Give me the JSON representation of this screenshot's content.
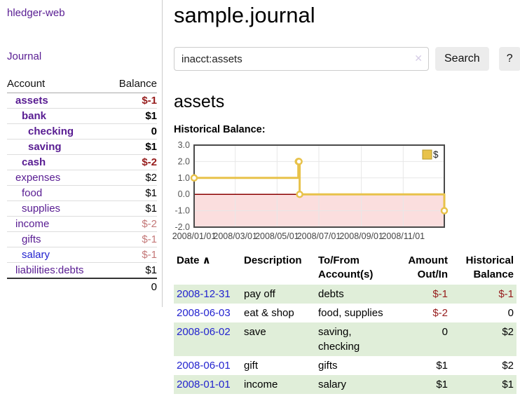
{
  "colors": {
    "link_purple": "#581c92",
    "link_blue": "#2323cf",
    "negative": "#961c1c",
    "negative_muted": "#c47878",
    "row_stripe_green": "#e0eed9",
    "button_bg": "#ececec",
    "clear_icon": "#d6cde6",
    "chart_line": "#e8c24a",
    "chart_marker_fill": "#ffffff",
    "chart_negative_bg": "#fbdede",
    "chart_zero_line": "#8b0000",
    "chart_grid": "#e7e7e7",
    "chart_border": "#4a4a4a",
    "chart_tick_text": "#555555"
  },
  "sidebar": {
    "brand": "hledger-web",
    "journal_link": "Journal",
    "col_account": "Account",
    "col_balance": "Balance",
    "accounts": [
      {
        "name": "assets",
        "indent": 0,
        "bold": true,
        "balance": "$-1",
        "balance_style": "negative"
      },
      {
        "name": "bank",
        "indent": 1,
        "bold": true,
        "balance": "$1",
        "balance_style": "default"
      },
      {
        "name": "checking",
        "indent": 2,
        "bold": true,
        "balance": "0",
        "balance_style": "default"
      },
      {
        "name": "saving",
        "indent": 2,
        "bold": true,
        "balance": "$1",
        "balance_style": "default"
      },
      {
        "name": "cash",
        "indent": 1,
        "bold": true,
        "balance": "$-2",
        "balance_style": "negative"
      },
      {
        "name": "expenses",
        "indent": 0,
        "bold": false,
        "balance": "$2",
        "balance_style": "default"
      },
      {
        "name": "food",
        "indent": 1,
        "bold": false,
        "balance": "$1",
        "balance_style": "default"
      },
      {
        "name": "supplies",
        "indent": 1,
        "bold": false,
        "balance": "$1",
        "balance_style": "default"
      },
      {
        "name": "income",
        "indent": 0,
        "bold": false,
        "balance": "$-2",
        "balance_style": "negative_muted"
      },
      {
        "name": "gifts",
        "indent": 1,
        "bold": false,
        "balance": "$-1",
        "balance_style": "negative_muted"
      },
      {
        "name": "salary",
        "indent": 1,
        "bold": false,
        "balance": "$-1",
        "balance_style": "negative_muted",
        "link_color": "blue"
      },
      {
        "name": "liabilities:debts",
        "indent": 0,
        "bold": false,
        "balance": "$1",
        "balance_style": "default"
      }
    ],
    "total": "0"
  },
  "main": {
    "title": "sample.journal",
    "account_heading": "assets",
    "chart_label": "Historical Balance:"
  },
  "search": {
    "value": "inacct:assets",
    "button_label": "Search",
    "help_label": "?",
    "clear_icon": "✕"
  },
  "chart_data": {
    "type": "line",
    "step": true,
    "title": "Historical Balance",
    "series": [
      {
        "name": "$",
        "points": [
          [
            "2008-01-01",
            1.0
          ],
          [
            "2008-06-01",
            2.0
          ],
          [
            "2008-06-02",
            2.0
          ],
          [
            "2008-06-03",
            0.0
          ],
          [
            "2008-12-31",
            -1.0
          ]
        ]
      }
    ],
    "xrange": [
      "2008-01-01",
      "2008-12-31"
    ],
    "xticks": [
      {
        "label": "2008/01/01",
        "date": "2008-01-01"
      },
      {
        "label": "2008/03/01",
        "date": "2008-03-01"
      },
      {
        "label": "2008/05/01",
        "date": "2008-05-01"
      },
      {
        "label": "2008/07/01",
        "date": "2008-07-01"
      },
      {
        "label": "2008/09/01",
        "date": "2008-09-01"
      },
      {
        "label": "2008/11/01",
        "date": "2008-11-01"
      }
    ],
    "ylim": [
      -2.0,
      3.0
    ],
    "yticks": [
      {
        "label": "3.0",
        "value": 3
      },
      {
        "label": "2.0",
        "value": 2
      },
      {
        "label": "1.0",
        "value": 1
      },
      {
        "label": "0.0",
        "value": 0
      },
      {
        "label": "-1.0",
        "value": -1
      },
      {
        "label": "-2.0",
        "value": -2
      }
    ],
    "legend": {
      "label": "$",
      "position": "top-right"
    },
    "grid": true,
    "negative_region_shaded": true,
    "zero_line": true
  },
  "register": {
    "sort_icon": "∧",
    "headers": [
      {
        "label": "Date",
        "sub": "",
        "align": "left",
        "sorted": true
      },
      {
        "label": "Description",
        "sub": "",
        "align": "left"
      },
      {
        "label": "To/From",
        "sub": "Account(s)",
        "align": "left"
      },
      {
        "label": "Amount",
        "sub": "Out/In",
        "align": "right"
      },
      {
        "label": "Historical",
        "sub": "Balance",
        "align": "right"
      }
    ],
    "rows": [
      {
        "date": "2008-12-31",
        "description": "pay off",
        "accounts": "debts",
        "amount": "$-1",
        "amount_style": "negative",
        "balance": "$-1",
        "balance_style": "negative"
      },
      {
        "date": "2008-06-03",
        "description": "eat & shop",
        "accounts": "food, supplies",
        "amount": "$-2",
        "amount_style": "negative",
        "balance": "0",
        "balance_style": "default"
      },
      {
        "date": "2008-06-02",
        "description": "save",
        "accounts": "saving, checking",
        "amount": "0",
        "amount_style": "default",
        "balance": "$2",
        "balance_style": "default"
      },
      {
        "date": "2008-06-01",
        "description": "gift",
        "accounts": "gifts",
        "amount": "$1",
        "amount_style": "default",
        "balance": "$2",
        "balance_style": "default"
      },
      {
        "date": "2008-01-01",
        "description": "income",
        "accounts": "salary",
        "amount": "$1",
        "amount_style": "default",
        "balance": "$1",
        "balance_style": "default"
      }
    ]
  }
}
